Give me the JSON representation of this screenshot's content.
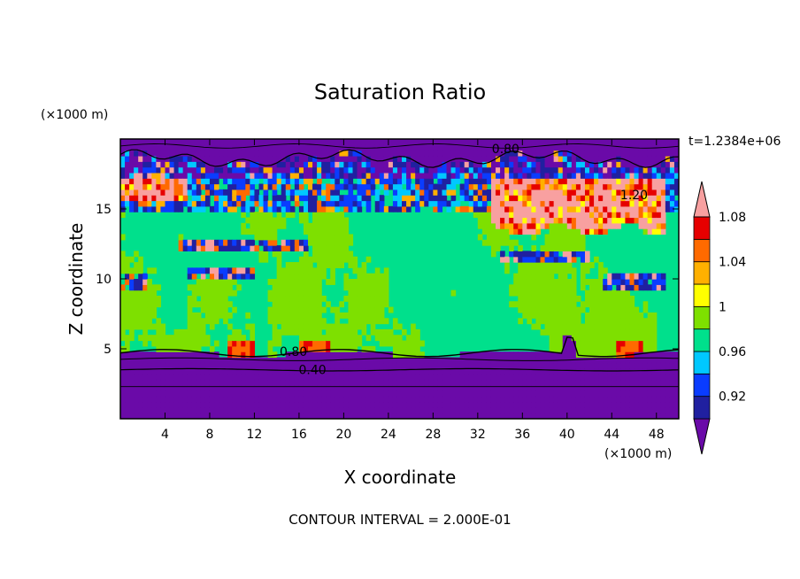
{
  "chart_data": {
    "type": "heatmap",
    "title": "Saturation Ratio",
    "xlabel": "X coordinate",
    "ylabel": "Z coordinate",
    "x_unit": "(×1000 m)",
    "y_unit": "(×1000 m)",
    "time_label": "t=1.2384e+06",
    "footer": "CONTOUR INTERVAL = 2.000E-01",
    "xlim": [
      0,
      50
    ],
    "ylim": [
      0,
      20
    ],
    "x_ticks": [
      4,
      8,
      12,
      16,
      20,
      24,
      28,
      32,
      36,
      40,
      44,
      48
    ],
    "y_ticks": [
      5,
      10,
      15
    ],
    "contour_labels": [
      {
        "text": "0.80",
        "x": 15.5,
        "z": 4.8
      },
      {
        "text": "0.40",
        "x": 17.2,
        "z": 3.5
      },
      {
        "text": "0.80",
        "x": 34.5,
        "z": 19.3
      },
      {
        "text": "1.20",
        "x": 46.0,
        "z": 16.0
      }
    ],
    "colorbar": {
      "levels": [
        0.92,
        0.94,
        0.96,
        0.98,
        1.0,
        1.02,
        1.04,
        1.06,
        1.08,
        1.1
      ],
      "tick_labels": [
        "1.08",
        "1.04",
        "1",
        "0.96",
        "0.92"
      ],
      "colors": [
        "#6a0aa8",
        "#2020a0",
        "#0a3cff",
        "#00c8ff",
        "#00e08c",
        "#7ee000",
        "#ffff00",
        "#ffb000",
        "#ff6a00",
        "#e60000",
        "#f8a0a0"
      ]
    }
  }
}
